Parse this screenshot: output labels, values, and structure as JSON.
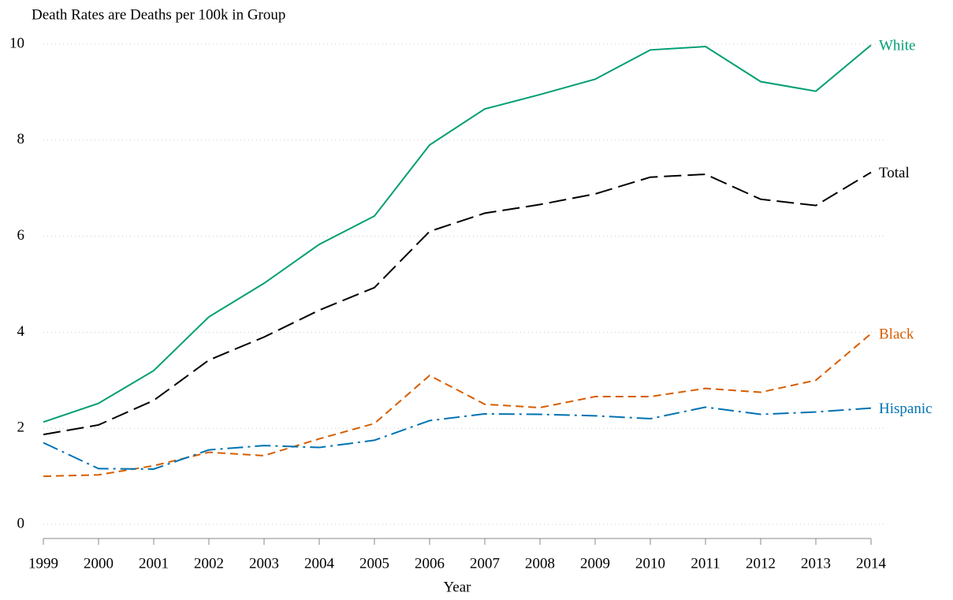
{
  "chart_data": {
    "type": "line",
    "title": "Death Rates are Deaths per 100k in Group",
    "x_label": "Year",
    "x": [
      1999,
      2000,
      2001,
      2002,
      2003,
      2004,
      2005,
      2006,
      2007,
      2008,
      2009,
      2010,
      2011,
      2012,
      2013,
      2014
    ],
    "xlim": [
      1999,
      2014
    ],
    "xticks": [
      1999,
      2000,
      2001,
      2002,
      2003,
      2004,
      2005,
      2006,
      2007,
      2008,
      2009,
      2010,
      2011,
      2012,
      2013,
      2014
    ],
    "ylim": [
      0,
      10
    ],
    "yticks": [
      0,
      2,
      4,
      6,
      8,
      10
    ],
    "grid": true,
    "series": [
      {
        "name": "White",
        "color": "#009e73",
        "values": [
          2.13,
          2.52,
          3.2,
          4.32,
          5.02,
          5.83,
          6.42,
          7.9,
          8.65,
          8.95,
          9.27,
          9.88,
          9.95,
          9.22,
          9.02,
          9.98
        ]
      },
      {
        "name": "Total",
        "color": "#000000",
        "values": [
          1.87,
          2.07,
          2.58,
          3.42,
          3.9,
          4.46,
          4.93,
          6.1,
          6.48,
          6.66,
          6.88,
          7.23,
          7.29,
          6.77,
          6.64,
          7.33
        ]
      },
      {
        "name": "Black",
        "color": "#d55e00",
        "values": [
          1.0,
          1.03,
          1.22,
          1.5,
          1.43,
          1.78,
          2.1,
          3.1,
          2.5,
          2.43,
          2.66,
          2.66,
          2.83,
          2.75,
          3.0,
          3.97
        ]
      },
      {
        "name": "Hispanic",
        "color": "#0072b2",
        "values": [
          1.7,
          1.16,
          1.15,
          1.55,
          1.64,
          1.6,
          1.75,
          2.16,
          2.3,
          2.29,
          2.26,
          2.2,
          2.44,
          2.29,
          2.34,
          2.42
        ]
      }
    ]
  }
}
